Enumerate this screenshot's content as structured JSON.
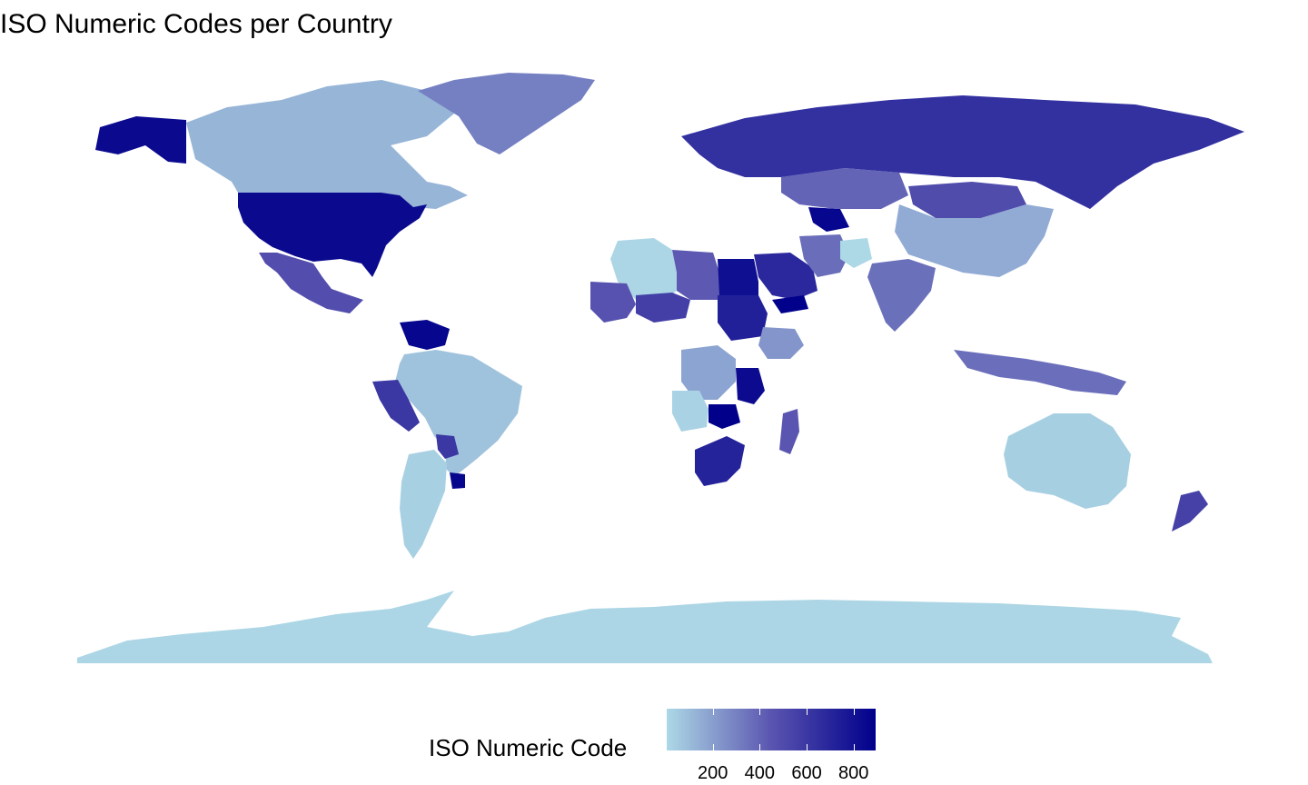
{
  "title": "ISO Numeric Codes per Country",
  "legend": {
    "title": "ISO Numeric Code",
    "min": 4,
    "max": 894,
    "ticks": [
      200,
      400,
      600,
      800
    ],
    "tick_labels": [
      "200",
      "400",
      "600",
      "800"
    ],
    "colors": {
      "low": "#add8e6",
      "mid": "#5a55b0",
      "high": "#00008b"
    }
  },
  "regions": [
    {
      "name": "Antarctica",
      "code": 10
    },
    {
      "name": "Australia",
      "code": 36
    },
    {
      "name": "Brazil",
      "code": 76
    },
    {
      "name": "Canada",
      "code": 124
    },
    {
      "name": "China",
      "code": 156
    },
    {
      "name": "Algeria",
      "code": 12
    },
    {
      "name": "Argentina",
      "code": 32
    },
    {
      "name": "Greenland",
      "code": 304
    },
    {
      "name": "United States",
      "code": 840
    },
    {
      "name": "Mexico",
      "code": 484
    },
    {
      "name": "Russia",
      "code": 643
    },
    {
      "name": "India",
      "code": 356
    },
    {
      "name": "Kazakhstan",
      "code": 398
    },
    {
      "name": "Mongolia",
      "code": 496
    },
    {
      "name": "Iran",
      "code": 364
    },
    {
      "name": "Saudi Arabia",
      "code": 682
    },
    {
      "name": "Egypt",
      "code": 818
    },
    {
      "name": "Libya",
      "code": 434
    },
    {
      "name": "Sudan",
      "code": 729
    },
    {
      "name": "DR Congo",
      "code": 180
    },
    {
      "name": "Angola",
      "code": 24
    },
    {
      "name": "South Africa",
      "code": 710
    },
    {
      "name": "Tanzania",
      "code": 834
    },
    {
      "name": "Zambia",
      "code": 894
    },
    {
      "name": "Ethiopia",
      "code": 231
    },
    {
      "name": "Mali",
      "code": 466
    },
    {
      "name": "Niger",
      "code": 562
    },
    {
      "name": "Peru",
      "code": 604
    },
    {
      "name": "Venezuela",
      "code": 862
    },
    {
      "name": "Indonesia",
      "code": 360
    },
    {
      "name": "New Zealand",
      "code": 554
    },
    {
      "name": "Madagascar",
      "code": 450
    },
    {
      "name": "Uzbekistan",
      "code": 860
    },
    {
      "name": "Afghanistan",
      "code": 4
    },
    {
      "name": "Yemen",
      "code": 887
    },
    {
      "name": "Uruguay",
      "code": 858
    },
    {
      "name": "Paraguay",
      "code": 600
    }
  ]
}
